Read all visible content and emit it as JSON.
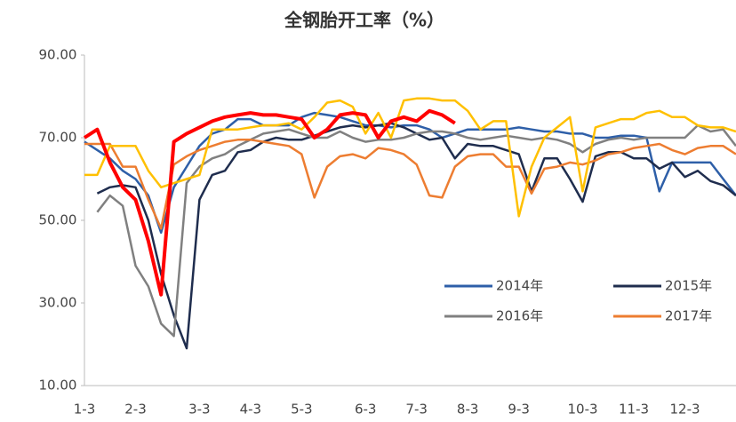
{
  "chart_data": {
    "type": "line",
    "title": "全钢胎开工率（%）",
    "categories": [
      "1-3",
      null,
      null,
      null,
      "2-3",
      null,
      null,
      null,
      null,
      "3-3",
      null,
      null,
      null,
      "4-3",
      null,
      null,
      null,
      "5-3",
      null,
      null,
      null,
      null,
      "6-3",
      null,
      null,
      null,
      "7-3",
      null,
      null,
      null,
      "8-3",
      null,
      null,
      null,
      "9-3",
      null,
      null,
      null,
      null,
      "10-3",
      null,
      null,
      null,
      "11-3",
      null,
      null,
      null,
      "12-3",
      null,
      null,
      null,
      null
    ],
    "ylim": [
      10,
      90
    ],
    "yticks": [
      {
        "value": 10,
        "label": "10.00"
      },
      {
        "value": 30,
        "label": "30.00"
      },
      {
        "value": 50,
        "label": "50.00"
      },
      {
        "value": 70,
        "label": "70.00"
      },
      {
        "value": 90,
        "label": "90.00"
      }
    ],
    "grid": false,
    "series": [
      {
        "name": "2014年",
        "color": "#2e5fa8",
        "values": [
          69,
          67,
          65,
          62,
          60,
          56,
          47,
          58,
          63,
          68,
          71,
          72,
          74.5,
          74.5,
          73,
          73,
          73,
          75,
          76,
          75.5,
          75,
          74,
          73,
          73,
          72.5,
          73,
          73,
          72,
          70,
          71,
          72,
          72,
          72,
          72,
          72.5,
          72,
          71.5,
          71.5,
          71,
          71,
          70,
          70,
          70.5,
          70.5,
          70,
          57,
          64,
          64,
          64,
          64,
          60,
          56
        ]
      },
      {
        "name": "2015年",
        "color": "#1f2d4e",
        "values": [
          null,
          56.5,
          58,
          58.5,
          58,
          50,
          37,
          27,
          19,
          55,
          61,
          62,
          66.5,
          67,
          69,
          70,
          69.5,
          69.5,
          70.5,
          71.5,
          72.5,
          73,
          72.5,
          73,
          73.5,
          72.5,
          71,
          69.5,
          70,
          65,
          68.5,
          68,
          68,
          67,
          66,
          57,
          65,
          65,
          60,
          54.5,
          65.5,
          66.5,
          66.5,
          65,
          65,
          62.5,
          64,
          60.5,
          62,
          59.5,
          58.5,
          56
        ]
      },
      {
        "name": "2016年",
        "color": "#808080",
        "values": [
          null,
          52,
          56,
          53.5,
          39,
          34,
          25,
          22,
          59,
          63,
          65,
          66,
          68,
          69.5,
          71,
          71.5,
          72,
          71,
          70,
          70,
          71.5,
          70,
          69,
          69.5,
          69.5,
          70,
          71,
          71.5,
          71.5,
          71,
          70,
          69.5,
          70,
          70.5,
          70,
          69.5,
          70,
          69.5,
          68.5,
          66.5,
          68.5,
          69.5,
          70,
          69.5,
          70,
          70,
          70,
          70,
          73,
          71.5,
          72,
          68
        ]
      },
      {
        "name": "2017年",
        "color": "#ed7d31",
        "values": [
          68.5,
          68.5,
          68.5,
          63,
          63,
          55,
          48,
          63.5,
          65.5,
          67,
          68,
          69,
          69.5,
          69.5,
          69,
          68.5,
          68,
          66,
          55.5,
          63,
          65.5,
          66,
          65,
          67.5,
          67,
          66,
          63.5,
          56,
          55.5,
          63,
          65.5,
          66,
          66,
          63,
          63,
          56.5,
          62.5,
          63,
          64,
          63.5,
          64.5,
          66,
          66.5,
          67.5,
          68,
          68.5,
          67,
          66,
          67.5,
          68,
          68,
          66
        ]
      },
      {
        "color": "#ffc000",
        "values": [
          61,
          61,
          68,
          68,
          68,
          62,
          58,
          59,
          60,
          61,
          72,
          72,
          72,
          72.5,
          73,
          73,
          73.5,
          72,
          75,
          78.5,
          79,
          77.5,
          71,
          76,
          70,
          79,
          79.5,
          79.5,
          79,
          79,
          76.5,
          72,
          74,
          74,
          51,
          63,
          70,
          72.5,
          75,
          57,
          72.5,
          73.5,
          74.5,
          74.5,
          76,
          76.5,
          75,
          75,
          73,
          72.5,
          72.5,
          71.5
        ]
      },
      {
        "color": "#ff0000",
        "values": [
          70,
          72,
          64,
          58,
          55,
          45,
          32,
          69,
          71,
          72.5,
          74,
          75,
          75.5,
          76,
          75.5,
          75.5,
          75,
          74.5,
          70,
          72,
          75.5,
          76,
          75.5,
          70,
          74,
          75,
          74,
          76.5,
          75.5,
          73.5,
          null,
          null,
          null,
          null,
          null,
          null,
          null,
          null,
          null,
          null,
          null,
          null,
          null,
          null,
          null,
          null,
          null,
          null,
          null,
          null,
          null,
          null
        ]
      }
    ]
  }
}
